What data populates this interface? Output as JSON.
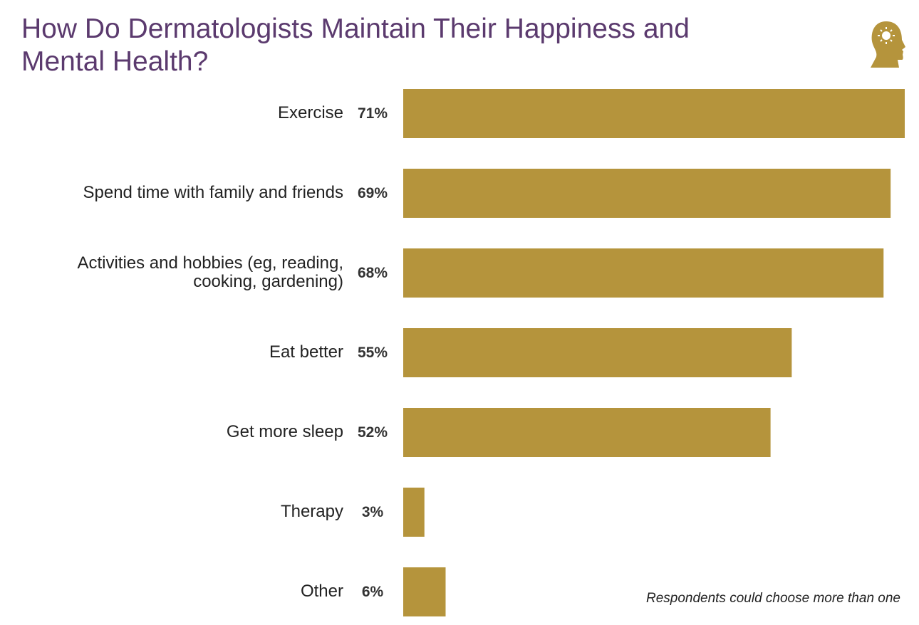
{
  "chart_data": {
    "type": "bar",
    "orientation": "horizontal",
    "title": "How Do Dermatologists Maintain Their Happiness and Mental Health?",
    "categories": [
      "Exercise",
      "Spend time with family and friends",
      "Activities and hobbies (eg, reading, cooking, gardening)",
      "Eat better",
      "Get more sleep",
      "Therapy",
      "Other"
    ],
    "values": [
      71,
      69,
      68,
      55,
      52,
      3,
      6
    ],
    "value_labels": [
      "71%",
      "69%",
      "68%",
      "55%",
      "52%",
      "3%",
      "6%"
    ],
    "color": "#b5943c",
    "note": "Respondents could choose more than one"
  }
}
